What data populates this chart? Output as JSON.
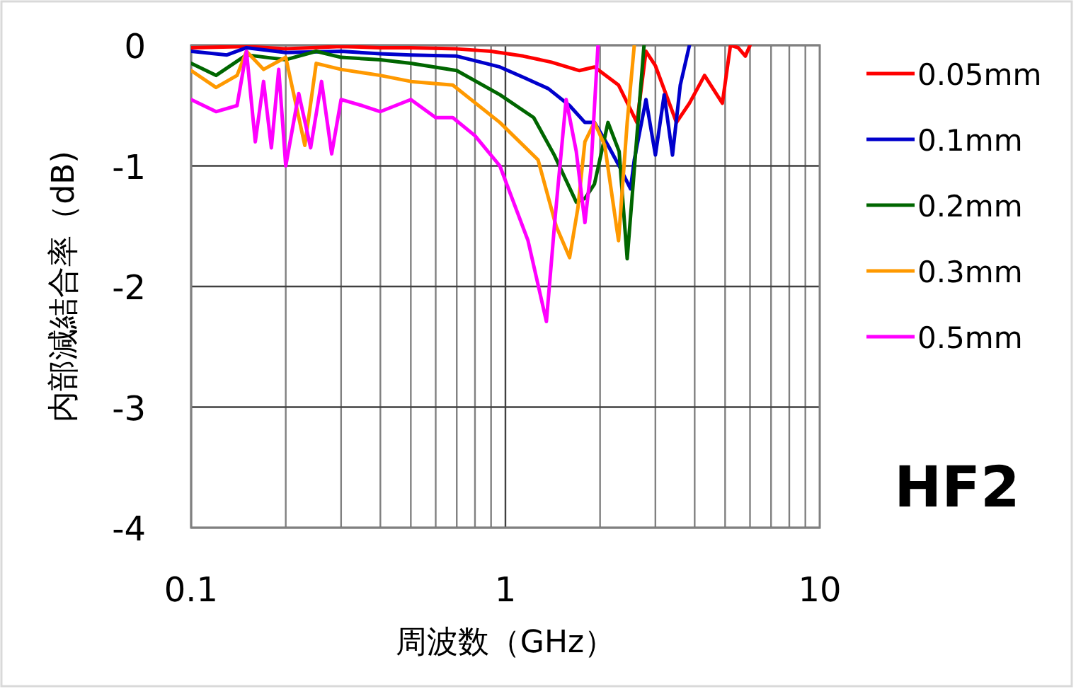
{
  "chart_data": {
    "type": "line",
    "xlabel": "周波数（GHz）",
    "ylabel": "内部減結合率（dB)",
    "log": "x",
    "xlim": [
      0.1,
      10
    ],
    "ylim": [
      -4,
      0
    ],
    "xticks": [
      0.1,
      1,
      10
    ],
    "yticks": [
      0,
      -1,
      -2,
      -3,
      -4
    ],
    "grid": true,
    "legend": "right",
    "marker": "none",
    "line_style": "solid",
    "annotations": [
      "HF2"
    ],
    "series": [
      {
        "name": "0.05mm",
        "color": "#ff0000",
        "x": [
          0.1,
          0.15,
          0.2,
          0.3,
          0.4,
          0.5,
          0.7,
          0.9,
          1.14,
          1.4,
          1.72,
          1.92,
          2.29,
          2.62,
          2.8,
          3.0,
          3.5,
          3.85,
          4.3,
          4.9,
          5.2,
          5.5,
          5.8,
          6.0
        ],
        "values": [
          -0.02,
          -0.01,
          -0.03,
          -0.01,
          -0.02,
          -0.02,
          -0.03,
          -0.05,
          -0.09,
          -0.14,
          -0.21,
          -0.18,
          -0.33,
          -0.64,
          -0.05,
          -0.17,
          -0.64,
          -0.48,
          -0.25,
          -0.48,
          0,
          -0.02,
          -0.09,
          0
        ]
      },
      {
        "name": "0.1mm",
        "color": "#0000cc",
        "x": [
          0.1,
          0.13,
          0.15,
          0.2,
          0.3,
          0.4,
          0.5,
          0.7,
          0.96,
          1.15,
          1.37,
          1.6,
          1.79,
          1.92,
          2.12,
          2.3,
          2.5,
          2.57,
          2.8,
          3.0,
          3.2,
          3.4,
          3.6,
          3.85
        ],
        "values": [
          -0.05,
          -0.08,
          -0.02,
          -0.06,
          -0.05,
          -0.07,
          -0.08,
          -0.09,
          -0.18,
          -0.27,
          -0.36,
          -0.5,
          -0.64,
          -0.64,
          -0.83,
          -1.0,
          -1.19,
          -0.95,
          -0.45,
          -0.91,
          -0.41,
          -0.91,
          -0.33,
          0
        ]
      },
      {
        "name": "0.2mm",
        "color": "#006600",
        "x": [
          0.1,
          0.12,
          0.15,
          0.2,
          0.25,
          0.3,
          0.4,
          0.5,
          0.7,
          0.96,
          1.23,
          1.43,
          1.68,
          1.79,
          1.92,
          2.12,
          2.3,
          2.44,
          2.57,
          2.76
        ],
        "values": [
          -0.15,
          -0.25,
          -0.08,
          -0.12,
          -0.05,
          -0.1,
          -0.12,
          -0.15,
          -0.21,
          -0.41,
          -0.6,
          -0.91,
          -1.3,
          -1.27,
          -1.15,
          -0.64,
          -0.88,
          -1.77,
          -1.03,
          0
        ]
      },
      {
        "name": "0.3mm",
        "color": "#ff9900",
        "x": [
          0.1,
          0.12,
          0.14,
          0.15,
          0.17,
          0.2,
          0.23,
          0.25,
          0.3,
          0.4,
          0.5,
          0.68,
          0.96,
          1.27,
          1.45,
          1.6,
          1.7,
          1.79,
          1.92,
          2.07,
          2.29,
          2.44,
          2.57
        ],
        "values": [
          -0.21,
          -0.35,
          -0.25,
          -0.05,
          -0.2,
          -0.1,
          -0.83,
          -0.15,
          -0.2,
          -0.25,
          -0.3,
          -0.33,
          -0.64,
          -0.95,
          -1.5,
          -1.76,
          -1.35,
          -0.8,
          -0.64,
          -0.83,
          -1.62,
          -0.64,
          0
        ]
      },
      {
        "name": "0.5mm",
        "color": "#ff00ff",
        "x": [
          0.1,
          0.12,
          0.14,
          0.15,
          0.16,
          0.17,
          0.18,
          0.19,
          0.2,
          0.22,
          0.24,
          0.26,
          0.28,
          0.3,
          0.35,
          0.4,
          0.5,
          0.6,
          0.68,
          0.8,
          0.96,
          1.18,
          1.35,
          1.44,
          1.56,
          1.68,
          1.79,
          1.87,
          1.97
        ],
        "values": [
          -0.45,
          -0.55,
          -0.5,
          -0.05,
          -0.8,
          -0.3,
          -0.85,
          -0.2,
          -1.0,
          -0.4,
          -0.85,
          -0.3,
          -0.9,
          -0.45,
          -0.5,
          -0.55,
          -0.45,
          -0.6,
          -0.6,
          -0.75,
          -1.0,
          -1.62,
          -2.29,
          -1.42,
          -0.45,
          -0.88,
          -1.47,
          -1.03,
          0
        ]
      }
    ]
  }
}
